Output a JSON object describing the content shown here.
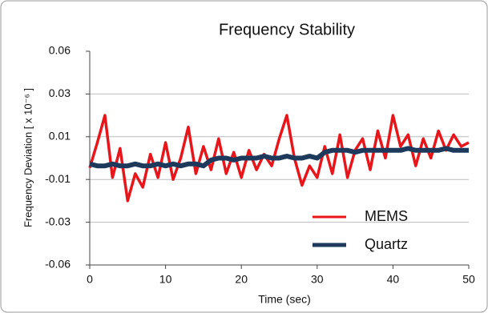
{
  "chart_data": {
    "type": "line",
    "title": "Frequency Stability",
    "xlabel": "Time (sec)",
    "ylabel": "Frequency Deviation [ x 10⁻⁶ ]",
    "x": [
      0,
      1,
      2,
      3,
      4,
      5,
      6,
      7,
      8,
      9,
      10,
      11,
      12,
      13,
      14,
      15,
      16,
      17,
      18,
      19,
      20,
      21,
      22,
      23,
      24,
      25,
      26,
      27,
      28,
      29,
      30,
      31,
      32,
      33,
      34,
      35,
      36,
      37,
      38,
      39,
      40,
      41,
      42,
      43,
      44,
      45,
      46,
      47,
      48,
      49,
      50
    ],
    "series": [
      {
        "name": "MEMS",
        "color": "#e8161b",
        "values": [
          -0.005,
          0.008,
          0.022,
          -0.01,
          0.005,
          -0.022,
          -0.008,
          -0.015,
          0.002,
          -0.01,
          0.008,
          -0.011,
          0.0,
          0.016,
          -0.008,
          0.006,
          -0.006,
          0.01,
          -0.008,
          0.003,
          -0.01,
          0.004,
          -0.006,
          0.002,
          -0.004,
          0.01,
          0.022,
          0.0,
          -0.014,
          -0.004,
          -0.01,
          0.006,
          -0.008,
          0.012,
          -0.01,
          0.004,
          0.01,
          -0.006,
          0.014,
          0.0,
          0.022,
          0.006,
          0.012,
          -0.004,
          0.01,
          0.0,
          0.014,
          0.004,
          0.012,
          0.006,
          0.008
        ]
      },
      {
        "name": "Quartz",
        "color": "#1d3a5c",
        "values": [
          -0.003,
          -0.004,
          -0.004,
          -0.003,
          -0.004,
          -0.004,
          -0.003,
          -0.004,
          -0.004,
          -0.003,
          -0.004,
          -0.003,
          -0.004,
          -0.003,
          -0.003,
          -0.004,
          -0.001,
          0.0,
          0.0,
          -0.001,
          0.0,
          0.0,
          0.0,
          0.001,
          0.0,
          0.0,
          0.001,
          0.0,
          0.0,
          0.001,
          0.0,
          0.003,
          0.004,
          0.004,
          0.004,
          0.003,
          0.004,
          0.004,
          0.004,
          0.004,
          0.004,
          0.004,
          0.005,
          0.004,
          0.004,
          0.004,
          0.004,
          0.005,
          0.004,
          0.004,
          0.004
        ]
      }
    ],
    "xlim": [
      0,
      50
    ],
    "xticks": [
      0,
      10,
      20,
      30,
      40,
      50
    ],
    "ylim": [
      -0.055,
      0.055
    ],
    "yticks": [
      {
        "value": -0.055,
        "label": "-0.06"
      },
      {
        "value": -0.033,
        "label": "-0.03"
      },
      {
        "value": -0.011,
        "label": "-0.01"
      },
      {
        "value": 0.011,
        "label": "0.01"
      },
      {
        "value": 0.033,
        "label": "0.03"
      },
      {
        "value": 0.055,
        "label": "0.06"
      }
    ],
    "grid": true,
    "legend": "lower-right"
  }
}
